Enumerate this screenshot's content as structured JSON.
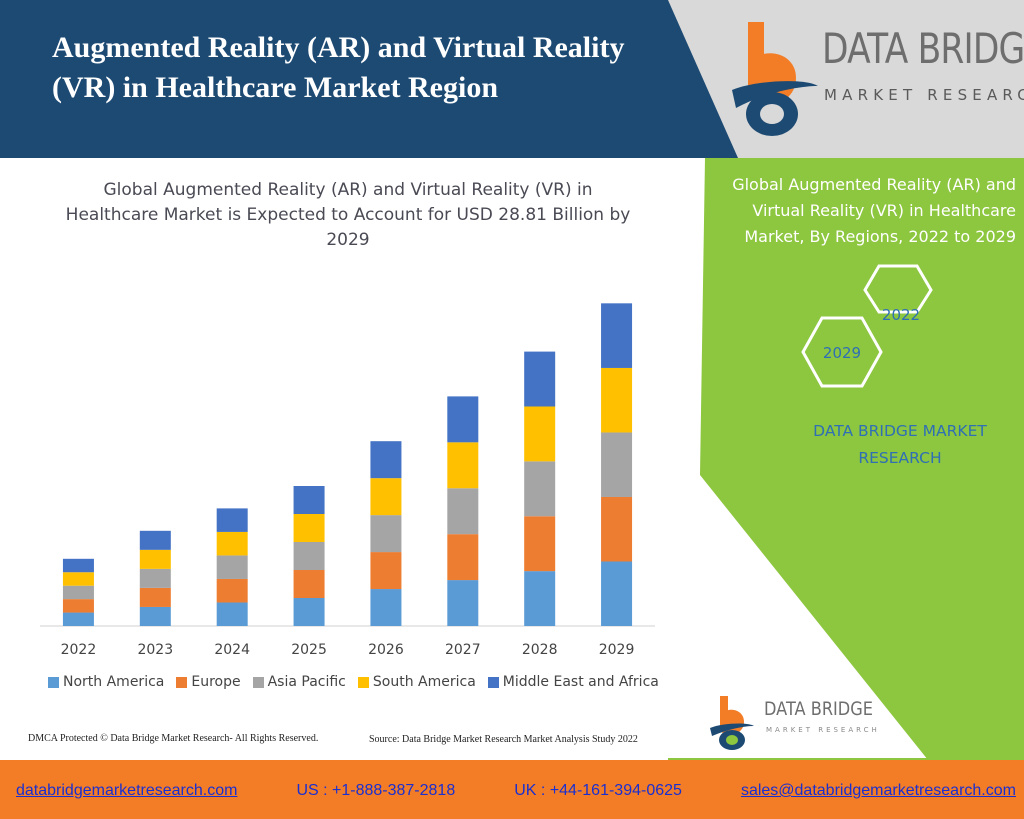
{
  "header": {
    "title": "Augmented Reality (AR) and Virtual Reality (VR) in Healthcare Market Region",
    "logo_name": "DATA BRIDGE",
    "logo_sub": "MARKET RESEARCH"
  },
  "chart_data": {
    "type": "bar",
    "stacked": true,
    "title": "Global Augmented Reality (AR) and Virtual Reality (VR) in Healthcare Market is Expected to Account for USD 28.81 Billion by 2029",
    "categories": [
      "2022",
      "2023",
      "2024",
      "2025",
      "2026",
      "2027",
      "2028",
      "2029"
    ],
    "series": [
      {
        "name": "North America",
        "color": "#5b9bd5",
        "values": [
          1.2,
          1.7,
          2.1,
          2.5,
          3.3,
          4.1,
          4.9,
          5.76
        ]
      },
      {
        "name": "Europe",
        "color": "#ed7d31",
        "values": [
          1.2,
          1.7,
          2.1,
          2.5,
          3.3,
          4.1,
          4.9,
          5.76
        ]
      },
      {
        "name": "Asia Pacific",
        "color": "#a5a5a5",
        "values": [
          1.2,
          1.7,
          2.1,
          2.5,
          3.3,
          4.1,
          4.9,
          5.76
        ]
      },
      {
        "name": "South America",
        "color": "#ffc000",
        "values": [
          1.2,
          1.7,
          2.1,
          2.5,
          3.3,
          4.1,
          4.9,
          5.76
        ]
      },
      {
        "name": "Middle East and Africa",
        "color": "#4472c4",
        "values": [
          1.2,
          1.7,
          2.1,
          2.5,
          3.3,
          4.1,
          4.9,
          5.77
        ]
      }
    ],
    "ylim": [
      0,
      30
    ],
    "grid": false,
    "legend": "bottom"
  },
  "side": {
    "title": "Global Augmented Reality (AR) and Virtual Reality (VR) in Healthcare Market, By Regions, 2022 to 2029",
    "hex_start": "2022",
    "hex_end": "2029",
    "brand": "DATA BRIDGE MARKET RESEARCH"
  },
  "notes": {
    "dmca": "DMCA Protected © Data Bridge Market Research- All Rights Reserved.",
    "source": "Source: Data Bridge Market Research Market Analysis Study 2022"
  },
  "logo_small": {
    "name": "DATA BRIDGE",
    "sub": "MARKET RESEARCH"
  },
  "footer": {
    "website": "databridgemarketresearch.com",
    "us_phone": "US : +1-888-387-2818",
    "uk_phone": "UK : +44-161-394-0625",
    "email": "sales@databridgemarketresearch.com"
  },
  "colors": {
    "header_navy": "#1d4a73",
    "side_green": "#8dc63f",
    "footer_orange": "#f37d27"
  }
}
